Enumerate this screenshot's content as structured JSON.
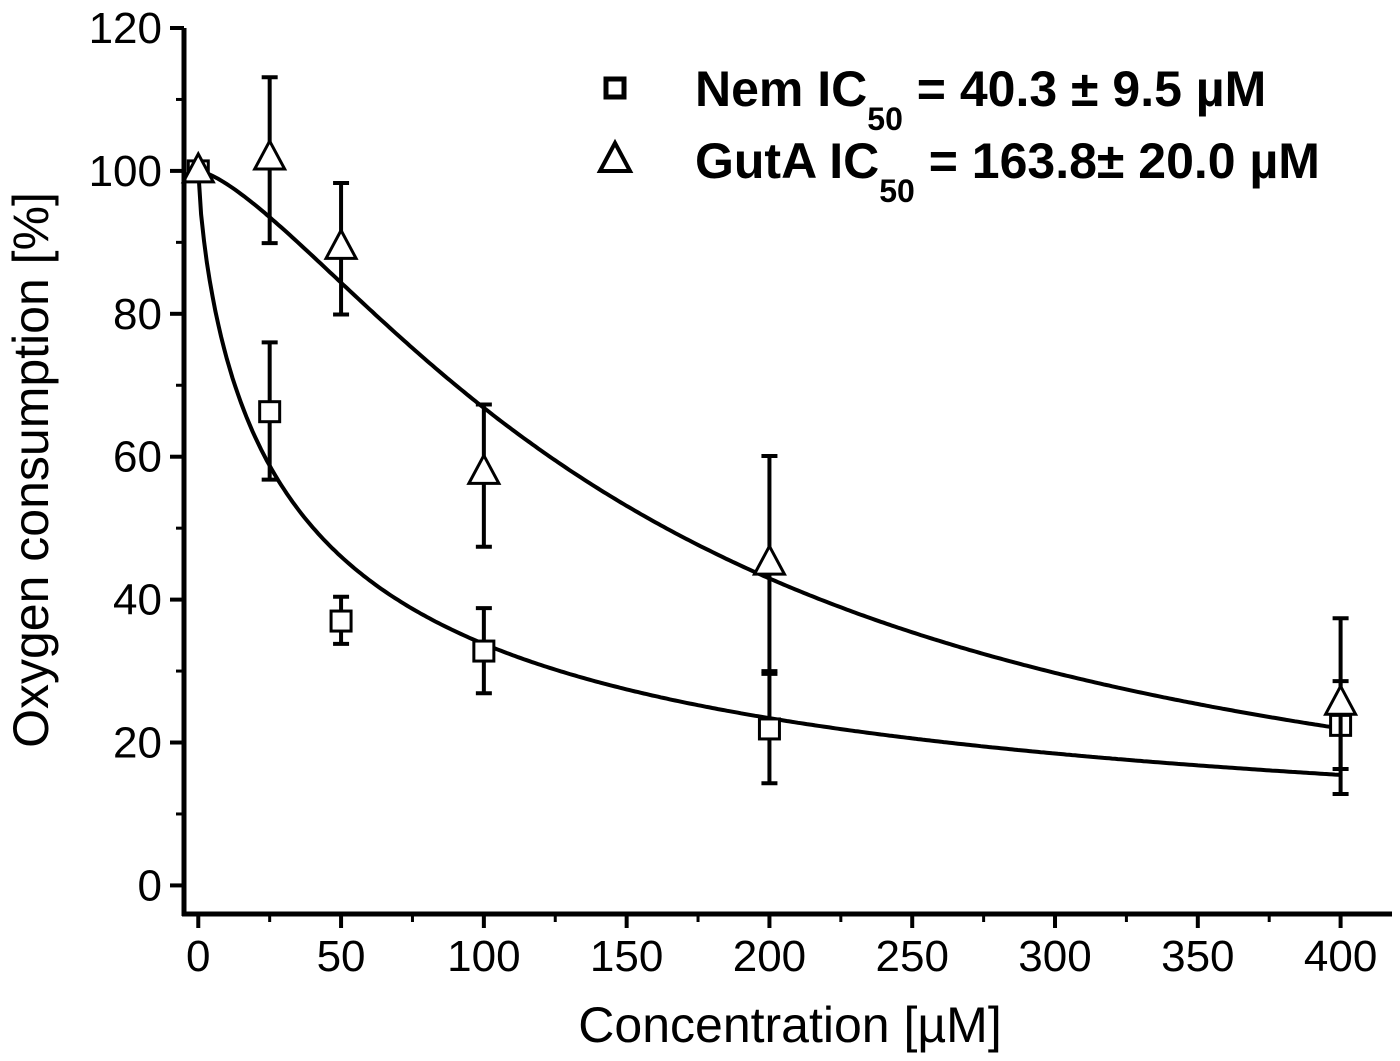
{
  "chart_data": {
    "type": "scatter",
    "title": "",
    "xlabel": "Concentration [µM]",
    "ylabel": "Oxygen consumption [%]",
    "xlim": [
      -5,
      418
    ],
    "ylim": [
      -4,
      120
    ],
    "xticks": [
      0,
      50,
      100,
      150,
      200,
      250,
      300,
      350,
      400
    ],
    "yticks": [
      0,
      20,
      40,
      60,
      80,
      100,
      120
    ],
    "grid": false,
    "legend_position": "top-right",
    "series": [
      {
        "name": "Nem",
        "marker": "square",
        "legend_ic": "IC",
        "legend_sub": "50",
        "legend_value": "= 40.3 ± 9.5 µM",
        "x": [
          0,
          25,
          50,
          100,
          200,
          400
        ],
        "y": [
          100,
          66.3,
          37.0,
          32.8,
          21.9,
          22.4
        ],
        "err_upper": [
          100,
          76.0,
          40.4,
          38.8,
          29.6,
          28.6
        ],
        "err_lower": [
          100,
          56.8,
          33.8,
          26.9,
          14.3,
          12.8
        ],
        "fit": {
          "model": "logistic",
          "top": 100,
          "ic50": 40.3,
          "hill": 0.74
        }
      },
      {
        "name": "GutA",
        "marker": "triangle",
        "legend_ic": "IC",
        "legend_sub": "50",
        "legend_value": "= 163.8± 20.0 µM",
        "x": [
          0,
          25,
          50,
          100,
          200,
          400
        ],
        "y": [
          100,
          101.8,
          89.3,
          57.8,
          45.1,
          25.5
        ],
        "err_upper": [
          100,
          113.1,
          98.3,
          67.3,
          60.1,
          37.4
        ],
        "err_lower": [
          100,
          89.9,
          79.9,
          47.4,
          30.0,
          16.3
        ],
        "fit": {
          "model": "logistic",
          "top": 100,
          "ic50": 163.8,
          "hill": 1.42
        }
      }
    ]
  }
}
